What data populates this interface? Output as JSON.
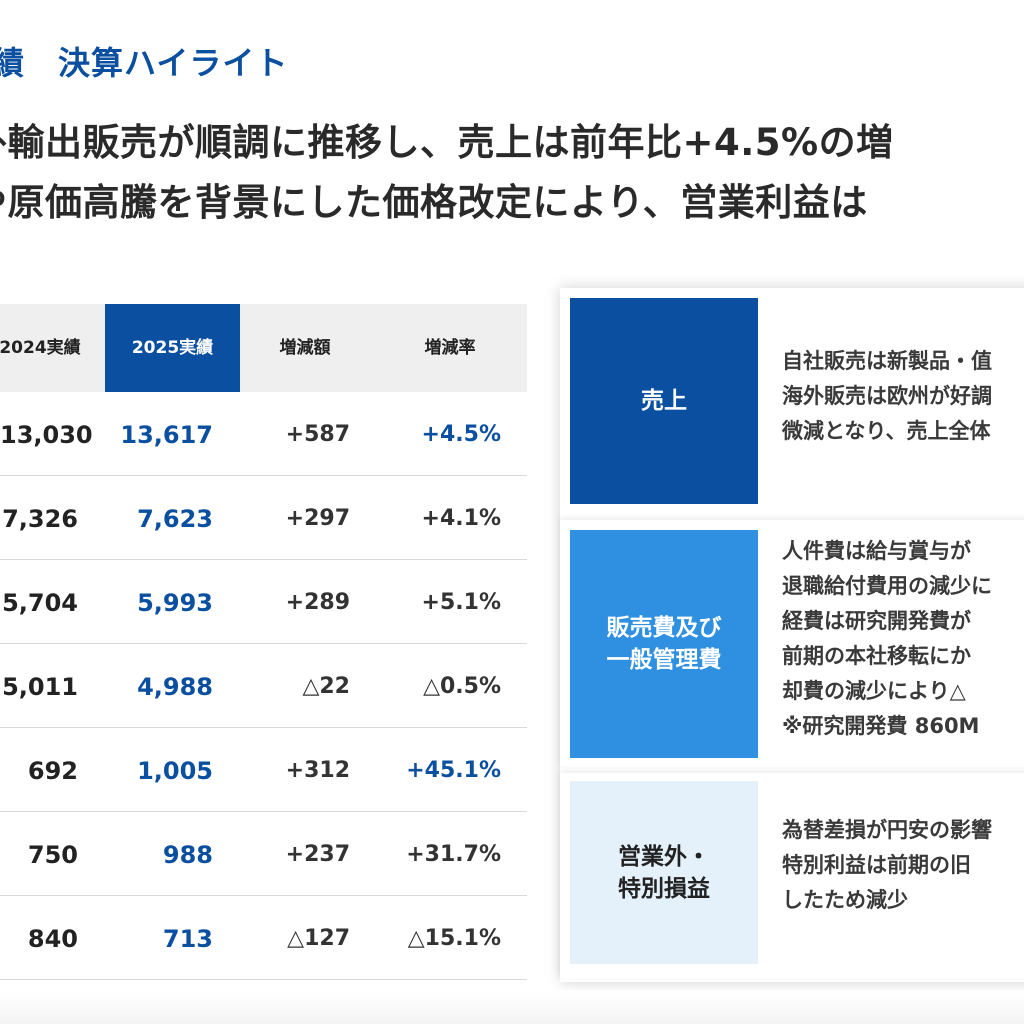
{
  "section_label": "績　決算ハイライト",
  "headline": [
    "外輸出販売が順調に推移し、売上は前年比+4.5%の増",
    "や原価高騰を背景にした価格改定により、営業利益は"
  ],
  "table": {
    "headers": [
      "2024実績",
      "2025実績",
      "増減額",
      "増減率"
    ],
    "rows": [
      {
        "prev": "13,030",
        "curr": "13,617",
        "diff": "+587",
        "rate": "+4.5%",
        "rate_highlight": true
      },
      {
        "prev": "7,326",
        "curr": "7,623",
        "diff": "+297",
        "rate": "+4.1%",
        "rate_highlight": false
      },
      {
        "prev": "5,704",
        "curr": "5,993",
        "diff": "+289",
        "rate": "+5.1%",
        "rate_highlight": false
      },
      {
        "prev": "5,011",
        "curr": "4,988",
        "diff": "△22",
        "rate": "△0.5%",
        "rate_highlight": false
      },
      {
        "prev": "692",
        "curr": "1,005",
        "diff": "+312",
        "rate": "+45.1%",
        "rate_highlight": true
      },
      {
        "prev": "750",
        "curr": "988",
        "diff": "+237",
        "rate": "+31.7%",
        "rate_highlight": false
      },
      {
        "prev": "840",
        "curr": "713",
        "diff": "△127",
        "rate": "△15.1%",
        "rate_highlight": false
      }
    ]
  },
  "blocks": [
    {
      "label_lines": [
        "売上"
      ],
      "desc_lines": [
        "自社販売は新製品・值",
        "海外販売は欧州が好調",
        "微減となり、売上全体"
      ]
    },
    {
      "label_lines": [
        "販売費及び",
        "一般管理費"
      ],
      "desc_lines": [
        "人件費は給与賞与が",
        "退職給付費用の減少に",
        "経費は研究開発費が",
        "前期の本社移転にか",
        "却費の減少により△",
        "※研究開発費 860M"
      ]
    },
    {
      "label_lines": [
        "営業外・",
        "特別損益"
      ],
      "desc_lines": [
        "為替差損が円安の影響",
        "特別利益は前期の旧",
        "したため減少"
      ]
    }
  ],
  "colors": {
    "brand_navy": "#0b4fa0",
    "mid_blue": "#2f8fe0",
    "light_blue": "#e4f1fb"
  }
}
